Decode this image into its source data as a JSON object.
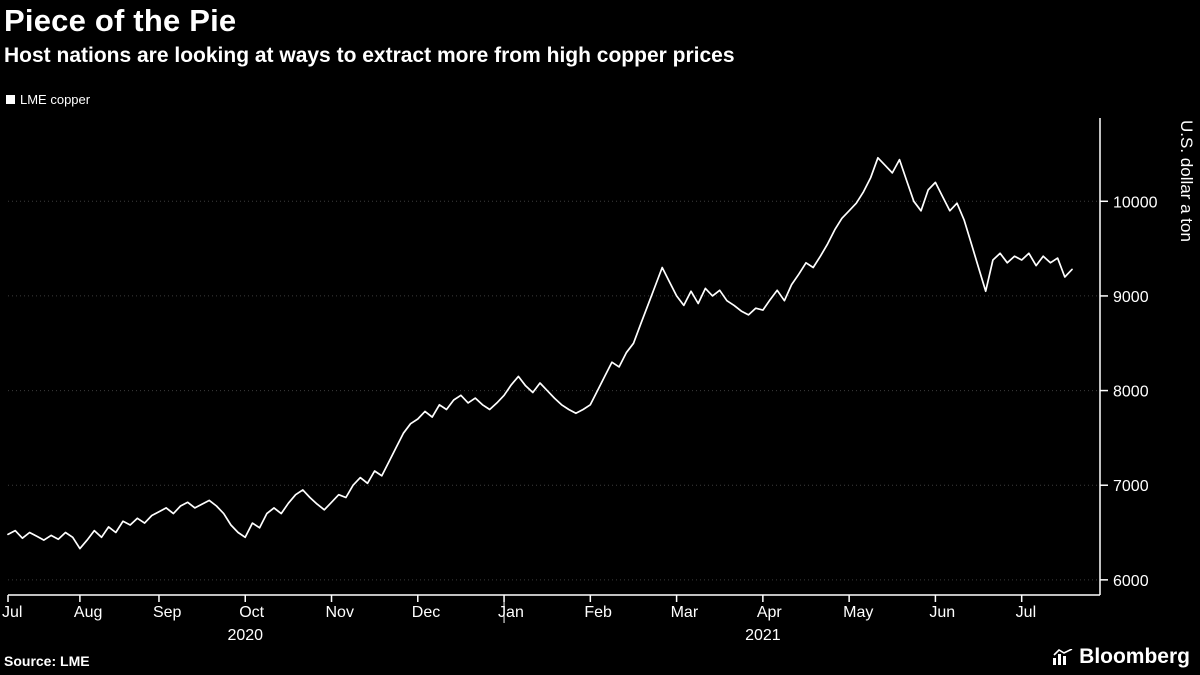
{
  "header": {
    "title": "Piece of the Pie",
    "subtitle": "Host nations are looking at ways to extract more from high copper prices"
  },
  "legend": {
    "label": "LME copper",
    "swatch_color": "#ffffff"
  },
  "footer": {
    "source": "Source: LME",
    "brand": "Bloomberg"
  },
  "colors": {
    "background": "#000000",
    "text": "#ffffff",
    "line": "#ffffff",
    "grid": "#3c3c3c",
    "axis": "#ffffff"
  },
  "chart_data": {
    "type": "line",
    "title": "Piece of the Pie",
    "subtitle": "Host nations are looking at ways to extract more from high copper prices",
    "ylabel": "U.S. dollar a ton",
    "ylim": [
      5840,
      10880
    ],
    "y_ticks": [
      6000,
      7000,
      8000,
      9000,
      10000
    ],
    "grid": "dotted-horizontal",
    "legend_position": "top-left",
    "series": [
      {
        "name": "LME copper",
        "values": [
          6480,
          6520,
          6440,
          6500,
          6460,
          6420,
          6470,
          6430,
          6500,
          6450,
          6330,
          6420,
          6520,
          6450,
          6560,
          6500,
          6620,
          6580,
          6650,
          6600,
          6680,
          6720,
          6760,
          6700,
          6780,
          6820,
          6760,
          6800,
          6840,
          6780,
          6700,
          6580,
          6500,
          6450,
          6600,
          6550,
          6700,
          6760,
          6700,
          6810,
          6900,
          6950,
          6870,
          6800,
          6740,
          6820,
          6900,
          6870,
          7000,
          7080,
          7020,
          7150,
          7100,
          7250,
          7400,
          7550,
          7650,
          7700,
          7780,
          7720,
          7850,
          7800,
          7900,
          7950,
          7870,
          7920,
          7850,
          7800,
          7870,
          7950,
          8060,
          8150,
          8050,
          7980,
          8080,
          8000,
          7920,
          7850,
          7800,
          7760,
          7800,
          7850,
          8000,
          8150,
          8300,
          8250,
          8400,
          8500,
          8700,
          8900,
          9100,
          9300,
          9150,
          9000,
          8900,
          9050,
          8920,
          9080,
          9000,
          9060,
          8950,
          8900,
          8840,
          8800,
          8870,
          8850,
          8960,
          9060,
          8950,
          9120,
          9230,
          9350,
          9300,
          9420,
          9550,
          9700,
          9820,
          9900,
          9980,
          10100,
          10250,
          10460,
          10380,
          10300,
          10440,
          10220,
          10000,
          9900,
          10120,
          10200,
          10050,
          9900,
          9980,
          9800,
          9550,
          9300,
          9050,
          9380,
          9450,
          9350,
          9420,
          9380,
          9450,
          9320,
          9420,
          9350,
          9400,
          9200,
          9280
        ]
      }
    ],
    "x_ticks": [
      {
        "label": "Jul",
        "index": 0
      },
      {
        "label": "Aug",
        "index": 10
      },
      {
        "label": "Sep",
        "index": 21
      },
      {
        "label": "Oct",
        "index": 33
      },
      {
        "label": "Nov",
        "index": 45
      },
      {
        "label": "Dec",
        "index": 57
      },
      {
        "label": "Jan",
        "index": 69
      },
      {
        "label": "Feb",
        "index": 81
      },
      {
        "label": "Mar",
        "index": 93
      },
      {
        "label": "Apr",
        "index": 105
      },
      {
        "label": "May",
        "index": 117
      },
      {
        "label": "Jun",
        "index": 129
      },
      {
        "label": "Jul",
        "index": 141
      }
    ],
    "year_labels": [
      {
        "label": "2020",
        "index": 33
      },
      {
        "label": "2021",
        "index": 105
      }
    ],
    "year_divider_index": 69
  }
}
